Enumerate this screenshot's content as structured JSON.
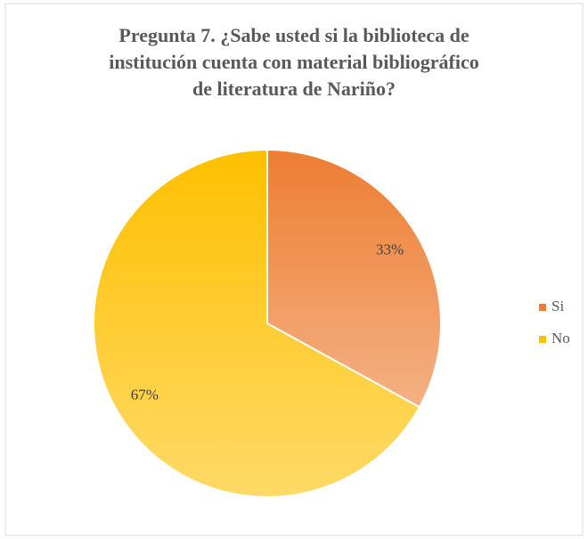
{
  "chart_data": {
    "type": "pie",
    "title": [
      "Pregunta 7. ¿Sabe usted si la biblioteca de",
      "institución cuenta con material bibliográfico",
      "de literatura de Nariño?"
    ],
    "categories": [
      "Si",
      "No"
    ],
    "values": [
      33,
      67
    ],
    "value_labels": [
      "33%",
      "67%"
    ],
    "colors": [
      "#ED7D31",
      "#FFC000"
    ],
    "legend": "right"
  }
}
